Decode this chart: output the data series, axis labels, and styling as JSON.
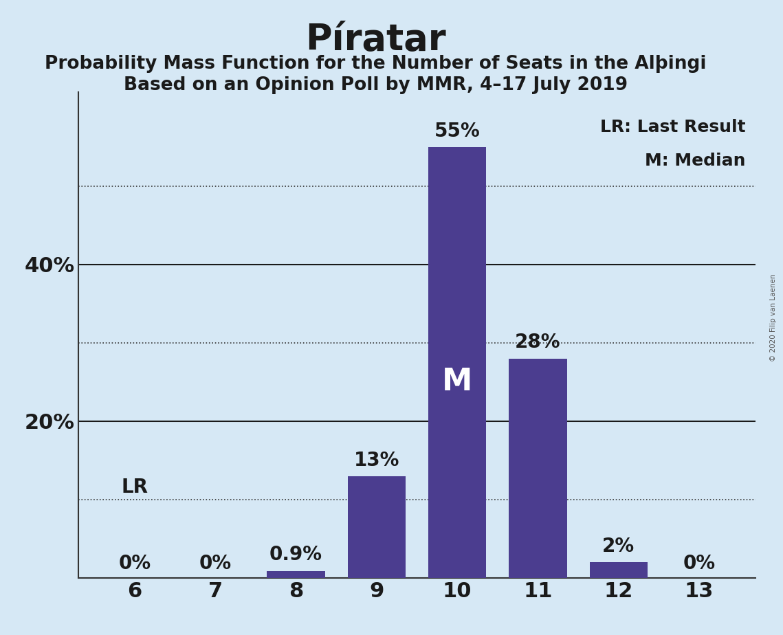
{
  "title": "Píratar",
  "subtitle1": "Probability Mass Function for the Number of Seats in the Alþingi",
  "subtitle2": "Based on an Opinion Poll by MMR, 4–17 July 2019",
  "copyright": "© 2020 Filip van Laenen",
  "categories": [
    6,
    7,
    8,
    9,
    10,
    11,
    12,
    13
  ],
  "values": [
    0.0,
    0.0,
    0.9,
    13.0,
    55.0,
    28.0,
    2.0,
    0.0
  ],
  "bar_color": "#4B3D8F",
  "background_color": "#d6e8f5",
  "median_seat": 10,
  "last_result_level": 10.0,
  "last_result_seat": 6,
  "ylim": [
    0,
    62
  ],
  "ytick_labels_shown": [
    20,
    40
  ],
  "solid_gridlines": [
    20,
    40
  ],
  "dotted_gridlines": [
    10,
    30,
    50
  ],
  "legend_text1": "LR: Last Result",
  "legend_text2": "M: Median",
  "bar_labels": [
    "0%",
    "0%",
    "0.9%",
    "13%",
    "55%",
    "28%",
    "2%",
    "0%"
  ],
  "label_fontsize": 20,
  "title_fontsize": 38,
  "subtitle_fontsize": 19,
  "axis_fontsize": 22,
  "legend_fontsize": 18
}
